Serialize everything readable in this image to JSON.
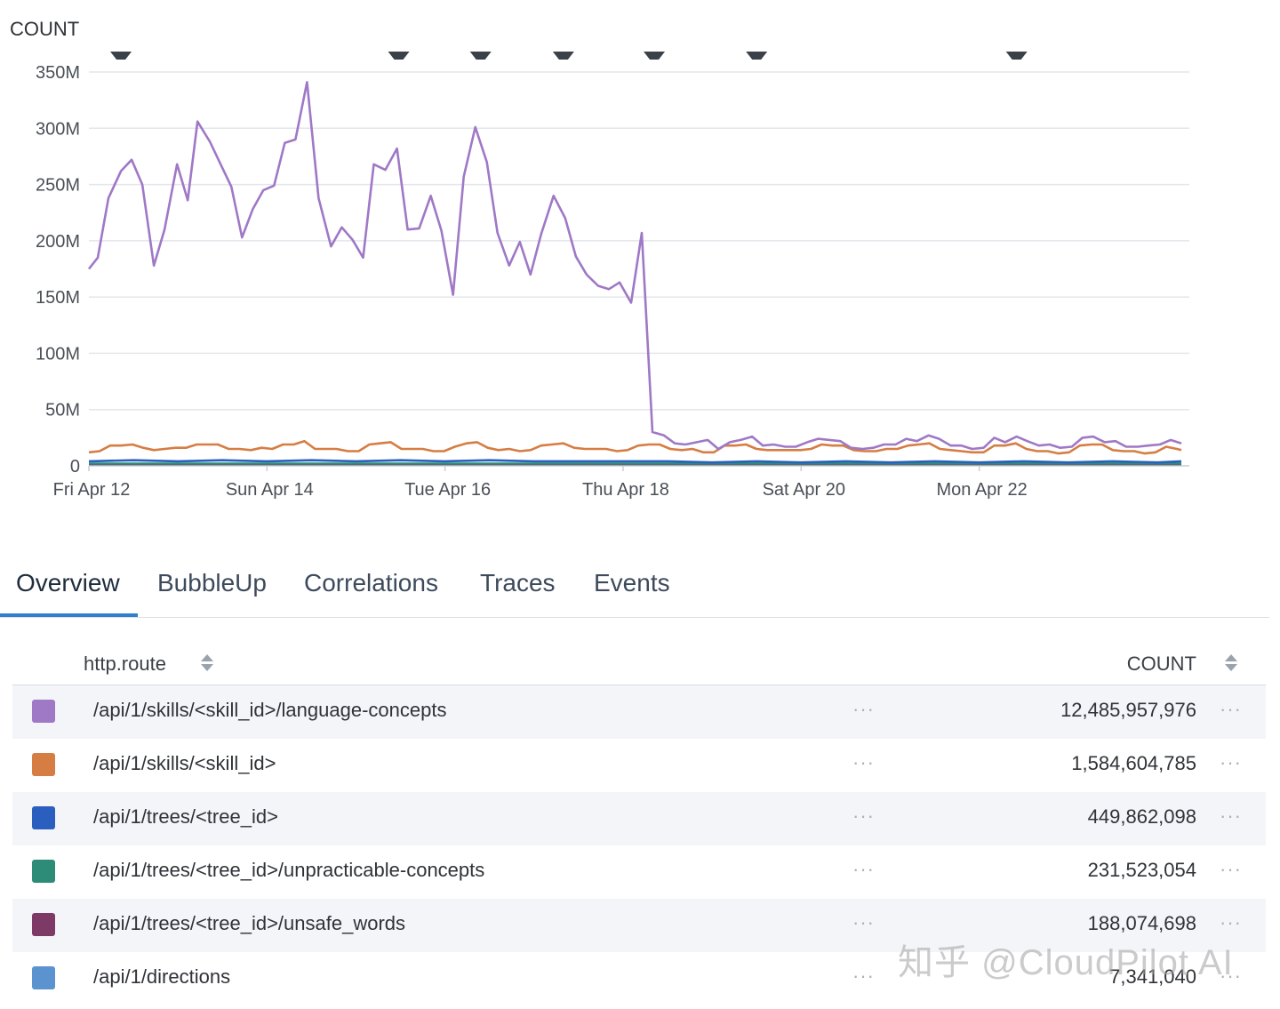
{
  "chart_data": {
    "type": "line",
    "ylabel": "COUNT",
    "ylim": [
      0,
      350000000
    ],
    "y_ticks": [
      "350M",
      "300M",
      "250M",
      "200M",
      "150M",
      "100M",
      "50M",
      "0"
    ],
    "x_ticks": [
      "Fri Apr 12",
      "Sun Apr 14",
      "Tue Apr 16",
      "Thu Apr 18",
      "Sat Apr 20",
      "Mon Apr 22"
    ],
    "x_days_from_apr12": [
      0,
      2,
      4,
      6,
      8,
      10
    ],
    "x_range_days": [
      0,
      12.36
    ],
    "marker_days": [
      0.36,
      3.48,
      4.4,
      5.33,
      6.35,
      7.5,
      10.42
    ],
    "grid": true,
    "series": [
      {
        "name": "/api/1/skills/<skill_id>/language-concepts",
        "color": "#9f78c6",
        "points": [
          [
            0,
            175
          ],
          [
            0.1,
            185
          ],
          [
            0.22,
            238
          ],
          [
            0.36,
            262
          ],
          [
            0.48,
            272
          ],
          [
            0.6,
            250
          ],
          [
            0.73,
            178
          ],
          [
            0.85,
            210
          ],
          [
            0.99,
            268
          ],
          [
            1.11,
            236
          ],
          [
            1.22,
            306
          ],
          [
            1.36,
            288
          ],
          [
            1.48,
            268
          ],
          [
            1.6,
            248
          ],
          [
            1.72,
            203
          ],
          [
            1.84,
            228
          ],
          [
            1.96,
            245
          ],
          [
            2.08,
            249
          ],
          [
            2.2,
            287
          ],
          [
            2.32,
            290
          ],
          [
            2.45,
            341
          ],
          [
            2.58,
            238
          ],
          [
            2.72,
            195
          ],
          [
            2.84,
            212
          ],
          [
            2.96,
            201
          ],
          [
            3.08,
            185
          ],
          [
            3.2,
            268
          ],
          [
            3.33,
            263
          ],
          [
            3.46,
            282
          ],
          [
            3.58,
            210
          ],
          [
            3.71,
            211
          ],
          [
            3.84,
            240
          ],
          [
            3.96,
            209
          ],
          [
            4.09,
            152
          ],
          [
            4.21,
            257
          ],
          [
            4.34,
            301
          ],
          [
            4.47,
            270
          ],
          [
            4.59,
            207
          ],
          [
            4.72,
            178
          ],
          [
            4.84,
            199
          ],
          [
            4.96,
            170
          ],
          [
            5.08,
            206
          ],
          [
            5.22,
            240
          ],
          [
            5.35,
            220
          ],
          [
            5.47,
            186
          ],
          [
            5.59,
            170
          ],
          [
            5.72,
            160
          ],
          [
            5.84,
            157
          ],
          [
            5.96,
            163
          ],
          [
            6.09,
            145
          ],
          [
            6.21,
            207
          ],
          [
            6.33,
            30
          ],
          [
            6.46,
            27
          ],
          [
            6.58,
            20
          ],
          [
            6.7,
            19
          ],
          [
            6.83,
            21
          ],
          [
            6.95,
            23
          ],
          [
            7.07,
            15
          ],
          [
            7.2,
            21
          ],
          [
            7.32,
            23
          ],
          [
            7.45,
            26
          ],
          [
            7.57,
            18
          ],
          [
            7.69,
            19
          ],
          [
            7.82,
            17
          ],
          [
            7.94,
            17
          ],
          [
            8.07,
            21
          ],
          [
            8.19,
            24
          ],
          [
            8.32,
            23
          ],
          [
            8.44,
            22
          ],
          [
            8.56,
            16
          ],
          [
            8.69,
            15
          ],
          [
            8.81,
            16
          ],
          [
            8.93,
            19
          ],
          [
            9.06,
            19
          ],
          [
            9.18,
            24
          ],
          [
            9.3,
            22
          ],
          [
            9.43,
            27
          ],
          [
            9.55,
            24
          ],
          [
            9.68,
            18
          ],
          [
            9.8,
            18
          ],
          [
            9.92,
            15
          ],
          [
            10.05,
            16
          ],
          [
            10.17,
            25
          ],
          [
            10.29,
            21
          ],
          [
            10.42,
            26
          ],
          [
            10.54,
            22
          ],
          [
            10.67,
            18
          ],
          [
            10.79,
            19
          ],
          [
            10.91,
            16
          ],
          [
            11.04,
            17
          ],
          [
            11.16,
            25
          ],
          [
            11.28,
            26
          ],
          [
            11.41,
            21
          ],
          [
            11.53,
            22
          ],
          [
            11.65,
            17
          ],
          [
            11.78,
            17
          ],
          [
            11.9,
            18
          ],
          [
            12.03,
            19
          ],
          [
            12.15,
            23
          ],
          [
            12.27,
            20
          ]
        ]
      },
      {
        "name": "/api/1/skills/<skill_id>",
        "color": "#d67d43",
        "points": [
          [
            0,
            12
          ],
          [
            0.12,
            13
          ],
          [
            0.24,
            18
          ],
          [
            0.36,
            18
          ],
          [
            0.49,
            19
          ],
          [
            0.61,
            16
          ],
          [
            0.73,
            14
          ],
          [
            0.85,
            15
          ],
          [
            0.97,
            16
          ],
          [
            1.09,
            16
          ],
          [
            1.21,
            19
          ],
          [
            1.33,
            19
          ],
          [
            1.45,
            19
          ],
          [
            1.57,
            15
          ],
          [
            1.69,
            15
          ],
          [
            1.82,
            14
          ],
          [
            1.94,
            16
          ],
          [
            2.06,
            15
          ],
          [
            2.18,
            19
          ],
          [
            2.3,
            19
          ],
          [
            2.42,
            22
          ],
          [
            2.54,
            15
          ],
          [
            2.66,
            15
          ],
          [
            2.78,
            15
          ],
          [
            2.91,
            13
          ],
          [
            3.03,
            13
          ],
          [
            3.15,
            19
          ],
          [
            3.27,
            20
          ],
          [
            3.39,
            21
          ],
          [
            3.51,
            15
          ],
          [
            3.63,
            15
          ],
          [
            3.75,
            15
          ],
          [
            3.87,
            13
          ],
          [
            3.99,
            13
          ],
          [
            4.11,
            17
          ],
          [
            4.24,
            20
          ],
          [
            4.36,
            21
          ],
          [
            4.48,
            16
          ],
          [
            4.6,
            14
          ],
          [
            4.72,
            15
          ],
          [
            4.84,
            13
          ],
          [
            4.96,
            14
          ],
          [
            5.08,
            18
          ],
          [
            5.2,
            19
          ],
          [
            5.33,
            20
          ],
          [
            5.45,
            16
          ],
          [
            5.57,
            15
          ],
          [
            5.69,
            15
          ],
          [
            5.81,
            15
          ],
          [
            5.93,
            13
          ],
          [
            6.05,
            14
          ],
          [
            6.17,
            18
          ],
          [
            6.29,
            19
          ],
          [
            6.41,
            19
          ],
          [
            6.53,
            15
          ],
          [
            6.66,
            14
          ],
          [
            6.78,
            15
          ],
          [
            6.9,
            12
          ],
          [
            7.02,
            12
          ],
          [
            7.14,
            18
          ],
          [
            7.26,
            18
          ],
          [
            7.38,
            19
          ],
          [
            7.5,
            15
          ],
          [
            7.62,
            14
          ],
          [
            7.75,
            14
          ],
          [
            7.87,
            14
          ],
          [
            7.99,
            14
          ],
          [
            8.11,
            15
          ],
          [
            8.23,
            19
          ],
          [
            8.35,
            18
          ],
          [
            8.47,
            18
          ],
          [
            8.59,
            14
          ],
          [
            8.71,
            13
          ],
          [
            8.84,
            13
          ],
          [
            8.96,
            15
          ],
          [
            9.08,
            15
          ],
          [
            9.2,
            18
          ],
          [
            9.32,
            19
          ],
          [
            9.44,
            20
          ],
          [
            9.56,
            15
          ],
          [
            9.68,
            14
          ],
          [
            9.8,
            13
          ],
          [
            9.92,
            12
          ],
          [
            10.05,
            12
          ],
          [
            10.17,
            18
          ],
          [
            10.29,
            18
          ],
          [
            10.41,
            20
          ],
          [
            10.53,
            15
          ],
          [
            10.65,
            13
          ],
          [
            10.77,
            13
          ],
          [
            10.89,
            11
          ],
          [
            11.01,
            12
          ],
          [
            11.13,
            18
          ],
          [
            11.26,
            19
          ],
          [
            11.38,
            19
          ],
          [
            11.5,
            14
          ],
          [
            11.62,
            13
          ],
          [
            11.74,
            13
          ],
          [
            11.86,
            11
          ],
          [
            11.98,
            12
          ],
          [
            12.1,
            17
          ],
          [
            12.22,
            15
          ],
          [
            12.27,
            14
          ]
        ]
      },
      {
        "name": "/api/1/trees/<tree_id>",
        "color": "#2a5fbf",
        "points": [
          [
            0,
            4
          ],
          [
            0.5,
            5
          ],
          [
            1,
            4
          ],
          [
            1.5,
            5
          ],
          [
            2,
            4
          ],
          [
            2.5,
            5
          ],
          [
            3,
            4
          ],
          [
            3.5,
            5
          ],
          [
            4,
            4
          ],
          [
            4.5,
            5
          ],
          [
            5,
            4
          ],
          [
            5.5,
            4
          ],
          [
            6,
            4
          ],
          [
            6.5,
            4
          ],
          [
            7,
            3
          ],
          [
            7.5,
            4
          ],
          [
            8,
            3
          ],
          [
            8.5,
            4
          ],
          [
            9,
            3
          ],
          [
            9.5,
            4
          ],
          [
            10,
            3
          ],
          [
            10.5,
            4
          ],
          [
            11,
            3
          ],
          [
            11.5,
            4
          ],
          [
            12,
            3
          ],
          [
            12.27,
            4
          ]
        ]
      },
      {
        "name": "/api/1/trees/<tree_id>/unpracticable-concepts",
        "color": "#2c8c78",
        "points": [
          [
            0,
            2
          ],
          [
            1,
            2
          ],
          [
            2,
            2
          ],
          [
            3,
            2
          ],
          [
            4,
            2
          ],
          [
            5,
            2
          ],
          [
            6,
            2
          ],
          [
            7,
            2
          ],
          [
            8,
            2
          ],
          [
            9,
            2
          ],
          [
            10,
            2
          ],
          [
            11,
            2
          ],
          [
            12.27,
            2
          ]
        ]
      },
      {
        "name": "/api/1/trees/<tree_id>/unsafe_words",
        "color": "#7e3a66",
        "points": [
          [
            0,
            1.5
          ],
          [
            1,
            1.5
          ],
          [
            2,
            1.5
          ],
          [
            3,
            1.5
          ],
          [
            4,
            1.5
          ],
          [
            5,
            1.5
          ],
          [
            6,
            1.5
          ],
          [
            7,
            1.5
          ],
          [
            8,
            1.5
          ],
          [
            9,
            1.5
          ],
          [
            10,
            1.5
          ],
          [
            11,
            1.5
          ],
          [
            12.27,
            1.5
          ]
        ]
      }
    ]
  },
  "tabs": [
    {
      "label": "Overview",
      "active": true
    },
    {
      "label": "BubbleUp"
    },
    {
      "label": "Correlations"
    },
    {
      "label": "Traces"
    },
    {
      "label": "Events"
    }
  ],
  "table": {
    "col_route": "http.route",
    "col_count": "COUNT",
    "rows": [
      {
        "color": "#9f78c6",
        "route": "/api/1/skills/<skill_id>/language-concepts",
        "count": "12,485,957,976"
      },
      {
        "color": "#d67d43",
        "route": "/api/1/skills/<skill_id>",
        "count": "1,584,604,785"
      },
      {
        "color": "#2a5fbf",
        "route": "/api/1/trees/<tree_id>",
        "count": "449,862,098"
      },
      {
        "color": "#2c8c78",
        "route": "/api/1/trees/<tree_id>/unpracticable-concepts",
        "count": "231,523,054"
      },
      {
        "color": "#7e3a66",
        "route": "/api/1/trees/<tree_id>/unsafe_words",
        "count": "188,074,698"
      },
      {
        "color": "#5a93d0",
        "route": "/api/1/directions",
        "count": "7,341,040"
      }
    ],
    "more_glyph": "···"
  },
  "watermark": "知乎 @CloudPilot AI"
}
